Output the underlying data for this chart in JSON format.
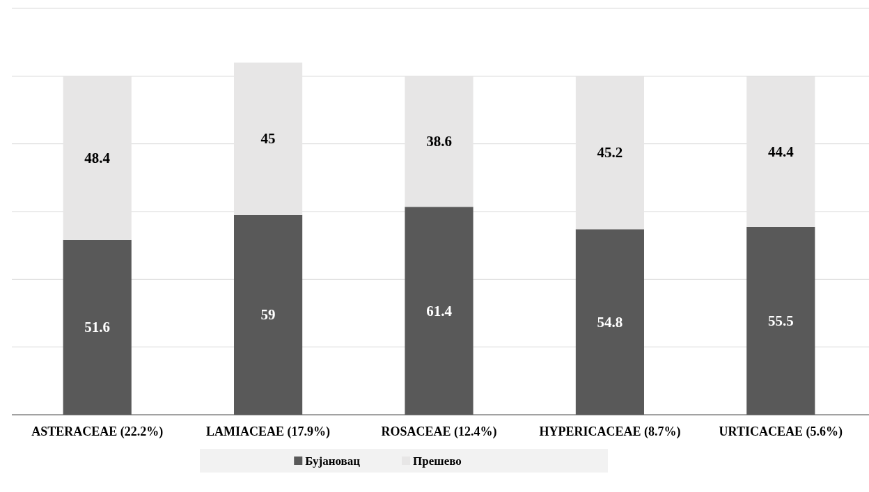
{
  "chart_data": {
    "type": "bar",
    "stacked": true,
    "categories": [
      "ASTERACEAE (22.2%)",
      "LAMIACEAE (17.9%)",
      "ROSACEAE (12.4%)",
      "HYPERICACEAE (8.7%)",
      "URTICACEAE (5.6%)"
    ],
    "series": [
      {
        "name": "Бујановац",
        "color": "#595959",
        "values": [
          51.6,
          59,
          61.4,
          54.8,
          55.5
        ]
      },
      {
        "name": "Прешево",
        "color": "#e7e6e6",
        "values": [
          48.4,
          45,
          38.6,
          45.2,
          44.4
        ]
      }
    ],
    "ylim": [
      0,
      120
    ],
    "yticks": [
      {
        "value": 0,
        "label": null
      },
      {
        "value": 20,
        "label": null
      },
      {
        "value": 40,
        "label": null
      },
      {
        "value": 60,
        "label": null
      },
      {
        "value": 80,
        "label": null
      },
      {
        "value": 100,
        "label": null
      },
      {
        "value": 120,
        "label": null
      }
    ],
    "tick_labels": "x",
    "grid": "y",
    "data_labels": true,
    "legend": "bottom"
  }
}
